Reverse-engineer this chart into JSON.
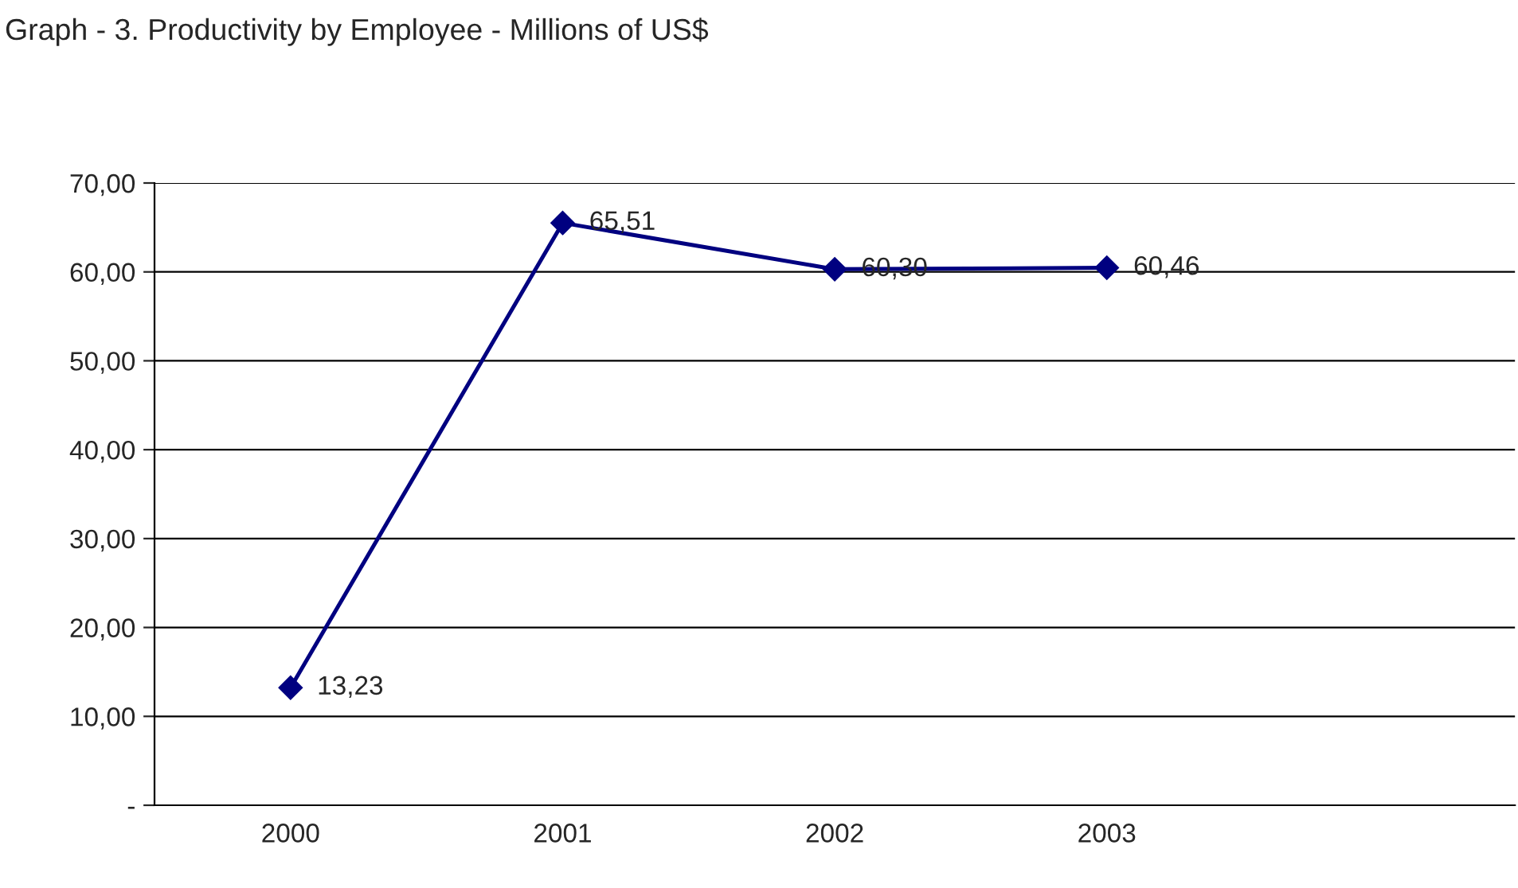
{
  "chart_data": {
    "type": "line",
    "title": "Graph - 3. Productivity by Employee - Millions of US$",
    "categories": [
      "2000",
      "2001",
      "2002",
      "2003",
      null
    ],
    "series": [
      {
        "color": "#000080",
        "values": [
          13.23,
          65.51,
          60.3,
          60.46,
          null
        ],
        "value_labels": [
          "13,23",
          "65,51",
          "60,30",
          "60,46",
          null
        ]
      }
    ],
    "ylim": [
      0,
      70
    ],
    "yticks": [
      {
        "value": 0,
        "label": "-"
      },
      {
        "value": 10,
        "label": "10,00"
      },
      {
        "value": 20,
        "label": "20,00"
      },
      {
        "value": 30,
        "label": "30,00"
      },
      {
        "value": 40,
        "label": "40,00"
      },
      {
        "value": 50,
        "label": "50,00"
      },
      {
        "value": 60,
        "label": "60,00"
      },
      {
        "value": 70,
        "label": "70,00"
      }
    ],
    "grid": "y",
    "marker": "diamond",
    "line_style": "solid",
    "legend": false
  }
}
